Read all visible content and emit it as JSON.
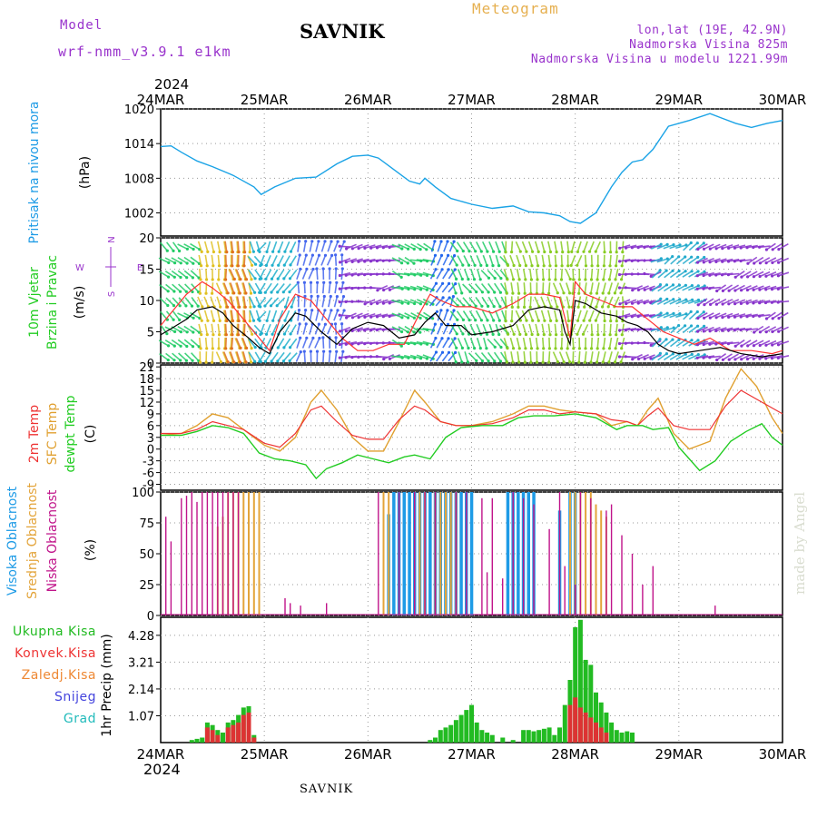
{
  "header": {
    "model_label": "Model",
    "model_name": "wrf-nmm_v3.9.1 e1km",
    "title": "SAVNIK",
    "meteogram_label": "Meteogram",
    "lonlat": "lon,lat (19E, 42.9N)",
    "elevation": "Nadmorska Visina 825m",
    "model_elevation": "Nadmorska Visina u modelu 1221.99m",
    "year_top": "2024"
  },
  "footer": {
    "station": "SAVNIK",
    "year_bottom": "2024"
  },
  "credit": "made by Angel",
  "compass": {
    "n": "N",
    "s": "S",
    "w": "W",
    "e": "E"
  },
  "colors": {
    "pressure": "#1aa3e6",
    "wind_speed": "#000000",
    "gust": "#ff3030",
    "t2m": "#ee3333",
    "sfc": "#e0a030",
    "dewpt": "#22cc22",
    "cloud_high": "#1e9be6",
    "cloud_mid": "#e3a43a",
    "cloud_low": "#c0148a",
    "precip_total": "#22bb22",
    "precip_conv": "#dd3333",
    "label_pressure": "#1e9be6",
    "label_wind": "#22cc22",
    "label_legend": "#9933cc"
  },
  "chart_data": [
    {
      "type": "line",
      "panel": "pressure",
      "ylabel": [
        "Pritisak na nivou mora",
        "(hPa)"
      ],
      "x_ticks": [
        "24MAR",
        "25MAR",
        "26MAR",
        "27MAR",
        "28MAR",
        "29MAR",
        "30MAR"
      ],
      "ylim": [
        998,
        1020
      ],
      "yticks": [
        1002,
        1008,
        1014,
        1020
      ],
      "grid": true,
      "series": [
        {
          "x": [
            0,
            0.1,
            0.2,
            0.35,
            0.5,
            0.7,
            0.9,
            0.97,
            1.1,
            1.3,
            1.5,
            1.7,
            1.85,
            2.0,
            2.1,
            2.25,
            2.4,
            2.5,
            2.55,
            2.65,
            2.8,
            3.0,
            3.2,
            3.4,
            3.55,
            3.7,
            3.85,
            3.95,
            4.05,
            4.2,
            4.35,
            4.45,
            4.55,
            4.65,
            4.75,
            4.9,
            5.1,
            5.3,
            5.4,
            5.55,
            5.7,
            5.85,
            6.0
          ],
          "values": [
            1013.5,
            1013.6,
            1012.5,
            1011,
            1010,
            1008.5,
            1006.5,
            1005.2,
            1006.5,
            1008,
            1008.2,
            1010.5,
            1011.8,
            1012,
            1011.5,
            1009.5,
            1007.5,
            1007,
            1008,
            1006.5,
            1004.5,
            1003.5,
            1002.8,
            1003.2,
            1002.2,
            1002,
            1001.5,
            1000.5,
            1000.2,
            1002,
            1006.5,
            1009,
            1010.8,
            1011.2,
            1013,
            1017,
            1018,
            1019.2,
            1018.5,
            1017.5,
            1016.8,
            1017.5,
            1018
          ]
        }
      ]
    },
    {
      "type": "line",
      "panel": "wind",
      "ylabel": [
        "10m Vjetar",
        "Brzina i Pravac",
        "(m/s)"
      ],
      "ylim": [
        0,
        20
      ],
      "yticks": [
        0,
        5,
        10,
        15,
        20
      ],
      "grid": true,
      "series": [
        {
          "name": "speed",
          "x": [
            0,
            0.1,
            0.25,
            0.35,
            0.5,
            0.6,
            0.7,
            0.85,
            0.95,
            1.05,
            1.15,
            1.3,
            1.4,
            1.55,
            1.7,
            1.85,
            2.0,
            2.15,
            2.3,
            2.45,
            2.55,
            2.65,
            2.75,
            2.9,
            3.0,
            3.2,
            3.4,
            3.55,
            3.7,
            3.85,
            3.9,
            3.95,
            4.0,
            4.1,
            4.25,
            4.4,
            4.5,
            4.6,
            4.7,
            4.8,
            4.9,
            5.0,
            5.2,
            5.4,
            5.6,
            5.8,
            6.0
          ],
          "values": [
            4.5,
            5.5,
            7,
            8.5,
            9,
            8,
            6,
            4,
            2.5,
            1.5,
            5,
            8,
            7.5,
            5,
            3,
            5.5,
            6.5,
            6,
            4,
            4.5,
            6.5,
            8,
            6,
            6,
            4.5,
            5,
            6,
            8.5,
            9,
            8.5,
            5,
            3,
            10,
            9.5,
            8,
            7.5,
            6.5,
            6,
            5,
            3,
            2,
            1.5,
            2,
            2.5,
            1.5,
            1,
            1.5
          ]
        },
        {
          "name": "gust",
          "x": [
            0,
            0.1,
            0.25,
            0.4,
            0.5,
            0.65,
            0.8,
            0.95,
            1.05,
            1.15,
            1.3,
            1.45,
            1.6,
            1.75,
            1.9,
            2.05,
            2.2,
            2.35,
            2.5,
            2.6,
            2.7,
            2.85,
            3.0,
            3.2,
            3.4,
            3.55,
            3.7,
            3.85,
            3.95,
            4.0,
            4.1,
            4.25,
            4.4,
            4.55,
            4.7,
            4.85,
            5.0,
            5.15,
            5.3,
            5.5,
            5.7,
            5.9,
            6.0
          ],
          "values": [
            6,
            8,
            11,
            13,
            12,
            10,
            7,
            4,
            2,
            7,
            11,
            10,
            7,
            4,
            2,
            2,
            3,
            3,
            8,
            11,
            10,
            9,
            9,
            8,
            9.5,
            11,
            11,
            10.5,
            4,
            13,
            11,
            10,
            9,
            9,
            7,
            5,
            4,
            3,
            4,
            2,
            2,
            1.5,
            2
          ]
        }
      ]
    },
    {
      "type": "line",
      "panel": "temperature",
      "ylabel": [
        "2m Temp",
        "SFC Temp",
        "dewpt Temp",
        "(C)"
      ],
      "ylim": [
        -10.5,
        21.5
      ],
      "yticks": [
        -9,
        -6,
        -3,
        0,
        3,
        6,
        9,
        12,
        15,
        18,
        21
      ],
      "grid": true,
      "series": [
        {
          "name": "2m Temp",
          "x": [
            0,
            0.2,
            0.35,
            0.5,
            0.65,
            0.8,
            1.0,
            1.15,
            1.3,
            1.45,
            1.55,
            1.7,
            1.85,
            2.0,
            2.15,
            2.3,
            2.45,
            2.55,
            2.7,
            2.85,
            3.0,
            3.2,
            3.4,
            3.55,
            3.7,
            3.85,
            4.0,
            4.2,
            4.35,
            4.5,
            4.6,
            4.7,
            4.8,
            4.95,
            5.1,
            5.3,
            5.45,
            5.6,
            5.8,
            6.0
          ],
          "values": [
            4,
            4,
            5,
            7,
            6,
            5,
            1.5,
            0.5,
            4,
            10,
            11,
            7,
            3.5,
            2.5,
            2.5,
            7.5,
            11,
            10,
            7,
            6,
            6,
            6.5,
            8,
            10,
            10,
            9,
            9.5,
            9,
            7.5,
            7,
            6,
            8.5,
            10.5,
            6,
            5,
            5,
            11,
            15,
            12,
            9
          ]
        },
        {
          "name": "SFC Temp",
          "x": [
            0,
            0.2,
            0.35,
            0.5,
            0.65,
            0.8,
            1.0,
            1.15,
            1.3,
            1.45,
            1.55,
            1.7,
            1.85,
            2.0,
            2.15,
            2.3,
            2.45,
            2.55,
            2.7,
            2.85,
            3.0,
            3.2,
            3.4,
            3.55,
            3.7,
            3.85,
            4.0,
            4.2,
            4.35,
            4.5,
            4.6,
            4.7,
            4.8,
            4.95,
            5.1,
            5.3,
            5.45,
            5.6,
            5.75,
            5.9,
            6.0
          ],
          "values": [
            3.5,
            4,
            6,
            9,
            8,
            5,
            1,
            -0.5,
            3,
            12,
            15,
            10,
            3,
            -0.5,
            -0.5,
            7,
            15,
            12,
            7,
            6,
            6,
            7,
            9,
            11,
            11,
            10,
            9.5,
            9,
            6,
            7,
            6,
            10,
            13,
            4,
            0,
            2,
            13,
            20.5,
            16,
            8,
            4
          ]
        },
        {
          "name": "dewpt Temp",
          "x": [
            0,
            0.2,
            0.35,
            0.5,
            0.65,
            0.8,
            0.95,
            1.1,
            1.25,
            1.4,
            1.5,
            1.6,
            1.75,
            1.9,
            2.05,
            2.2,
            2.35,
            2.45,
            2.6,
            2.75,
            2.9,
            3.1,
            3.3,
            3.45,
            3.6,
            3.8,
            4.0,
            4.2,
            4.4,
            4.5,
            4.65,
            4.75,
            4.9,
            5.0,
            5.1,
            5.2,
            5.35,
            5.5,
            5.65,
            5.8,
            5.9,
            6.0
          ],
          "values": [
            3.5,
            3.5,
            4.5,
            6,
            5.5,
            4,
            -1,
            -2.5,
            -3,
            -4,
            -7.5,
            -5,
            -3.5,
            -1.5,
            -2.5,
            -3.5,
            -2,
            -1.5,
            -2.5,
            3,
            5.5,
            6,
            6,
            8,
            8.5,
            8.5,
            9,
            8,
            5,
            6,
            6,
            5,
            5.5,
            0.5,
            -2.5,
            -5.5,
            -3,
            2,
            4.5,
            6.5,
            3,
            1
          ]
        }
      ]
    },
    {
      "type": "bar",
      "panel": "clouds",
      "ylabel": [
        "Visoka Oblacnost",
        "Srednja Oblacnost",
        "Niska Oblacnost",
        "(%)"
      ],
      "ylim": [
        0,
        100
      ],
      "yticks": [
        0,
        25,
        50,
        75,
        100
      ],
      "grid": true,
      "series": [
        {
          "name": "Visoka",
          "x": [
            2.2,
            2.25,
            2.3,
            2.35,
            2.4,
            2.45,
            2.5,
            2.55,
            2.6,
            2.65,
            2.7,
            2.75,
            2.8,
            2.85,
            2.9,
            2.95,
            3.0,
            3.35,
            3.4,
            3.45,
            3.5,
            3.55,
            3.6,
            3.85,
            3.95,
            4.0
          ],
          "values": [
            82,
            100,
            100,
            100,
            100,
            100,
            100,
            100,
            100,
            100,
            100,
            100,
            100,
            100,
            100,
            100,
            100,
            100,
            100,
            100,
            100,
            100,
            100,
            85,
            100,
            100
          ]
        },
        {
          "name": "Srednja",
          "x": [
            0.55,
            0.6,
            0.65,
            0.7,
            0.75,
            0.8,
            0.85,
            0.9,
            0.95,
            2.15,
            2.2,
            2.5,
            2.55,
            2.65,
            2.7,
            2.75,
            2.8,
            2.85,
            3.95,
            4.0,
            4.05,
            4.1,
            4.15,
            4.2,
            4.25,
            4.3
          ],
          "values": [
            72,
            80,
            100,
            100,
            100,
            100,
            100,
            100,
            100,
            100,
            100,
            100,
            100,
            100,
            100,
            100,
            100,
            100,
            100,
            100,
            100,
            100,
            100,
            90,
            85,
            80
          ]
        },
        {
          "name": "Niska",
          "x": [
            0.05,
            0.1,
            0.2,
            0.25,
            0.3,
            0.35,
            0.4,
            0.45,
            0.5,
            0.55,
            0.6,
            0.65,
            0.7,
            0.75,
            1.2,
            1.25,
            1.35,
            1.6,
            2.1,
            2.3,
            2.45,
            2.55,
            2.65,
            2.85,
            2.95,
            3.1,
            3.15,
            3.2,
            3.3,
            3.4,
            3.5,
            3.6,
            3.75,
            3.85,
            3.9,
            4.0,
            4.05,
            4.15,
            4.3,
            4.35,
            4.45,
            4.55,
            4.65,
            4.75,
            5.35
          ],
          "values": [
            80,
            60,
            95,
            97,
            100,
            92,
            100,
            100,
            100,
            100,
            100,
            100,
            100,
            100,
            14,
            10,
            8,
            10,
            100,
            100,
            100,
            100,
            100,
            100,
            100,
            95,
            35,
            95,
            30,
            100,
            95,
            90,
            70,
            100,
            40,
            25,
            100,
            95,
            85,
            90,
            65,
            50,
            25,
            40,
            8
          ]
        }
      ]
    },
    {
      "type": "bar",
      "panel": "precip",
      "ylabel": [
        "1hr Precip (mm)"
      ],
      "legend": [
        "Ukupna Kisa",
        "Konvek.Kisa",
        "Zaledj.Kisa",
        "Snijeg",
        "Grad"
      ],
      "ylim": [
        0,
        5
      ],
      "yticks": [
        1.07,
        2.14,
        3.21,
        4.28
      ],
      "grid": true,
      "series": [
        {
          "name": "Ukupna Kisa",
          "x": [
            0.3,
            0.35,
            0.4,
            0.45,
            0.5,
            0.55,
            0.6,
            0.65,
            0.7,
            0.75,
            0.8,
            0.85,
            0.9,
            2.6,
            2.65,
            2.7,
            2.75,
            2.8,
            2.85,
            2.9,
            2.95,
            3.0,
            3.05,
            3.1,
            3.15,
            3.2,
            3.3,
            3.4,
            3.5,
            3.55,
            3.6,
            3.65,
            3.7,
            3.75,
            3.8,
            3.85,
            3.9,
            3.95,
            4.0,
            4.05,
            4.1,
            4.15,
            4.2,
            4.25,
            4.3,
            4.35,
            4.4,
            4.45,
            4.5,
            4.55
          ],
          "values": [
            0.1,
            0.15,
            0.2,
            0.8,
            0.7,
            0.5,
            0.4,
            0.8,
            0.9,
            1.1,
            1.4,
            1.45,
            0.3,
            0.1,
            0.2,
            0.5,
            0.6,
            0.7,
            0.9,
            1.1,
            1.3,
            1.5,
            0.8,
            0.5,
            0.4,
            0.3,
            0.2,
            0.1,
            0.5,
            0.5,
            0.45,
            0.5,
            0.55,
            0.6,
            0.3,
            0.6,
            1.5,
            2.5,
            4.6,
            4.9,
            3.3,
            3.1,
            2.0,
            1.6,
            1.2,
            0.8,
            0.5,
            0.4,
            0.45,
            0.4
          ]
        },
        {
          "name": "Konvek.Kisa",
          "x": [
            0.45,
            0.5,
            0.55,
            0.65,
            0.7,
            0.75,
            0.8,
            0.85,
            0.9,
            3.95,
            4.0,
            4.05,
            4.1,
            4.15,
            4.2,
            4.25,
            4.3
          ],
          "values": [
            0.6,
            0.5,
            0.3,
            0.6,
            0.7,
            0.8,
            1.1,
            1.2,
            0.2,
            1.5,
            1.8,
            1.4,
            1.2,
            1.0,
            0.8,
            0.6,
            0.4
          ]
        }
      ]
    },
    {
      "type": "quiver",
      "panel": "wind_direction",
      "compass": [
        "N",
        "S",
        "W",
        "E"
      ]
    }
  ]
}
